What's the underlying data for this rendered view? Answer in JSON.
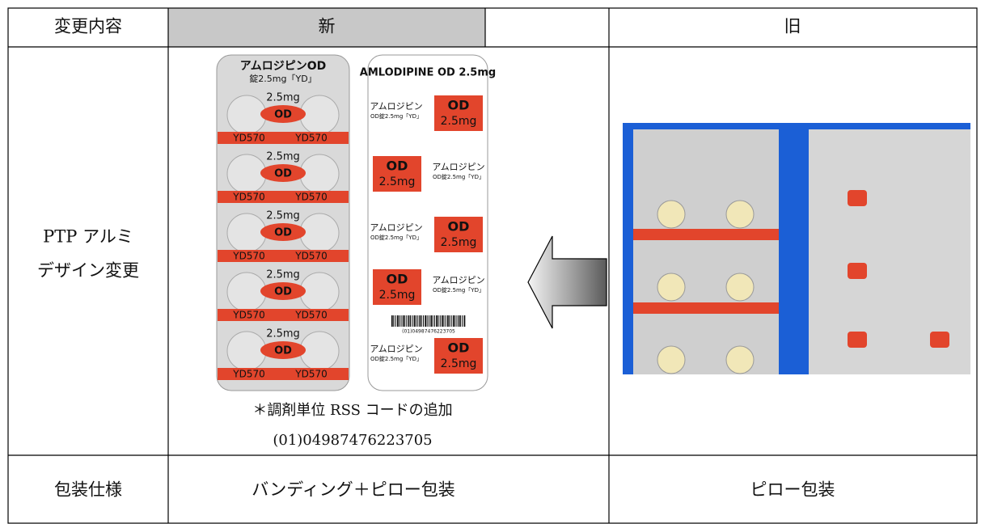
{
  "table": {
    "header": [
      "変更内容",
      "新",
      "旧"
    ],
    "design_row": {
      "item_lines": [
        "PTP アルミ",
        "デザイン変更"
      ],
      "note_lines": [
        "＊調剤単位 RSS コードの追加",
        "(01)04987476223705"
      ]
    },
    "package_row": [
      "包装仕様",
      "バンディング＋ピロー包装",
      "ピロー包装"
    ]
  },
  "blister_front": {
    "title": "アムロジピンOD",
    "subtitle": "錠2.5mg「YD」",
    "dose": "2.5mg",
    "mark": "OD",
    "code": "YD570"
  },
  "blister_back": {
    "title": "AMLODIPINE OD 2.5mg",
    "name": "アムロジピン",
    "sub": "OD錠2.5mg「YD」",
    "mark": "OD",
    "dose": "2.5mg",
    "barcode_number": "(01)04987476223705"
  }
}
